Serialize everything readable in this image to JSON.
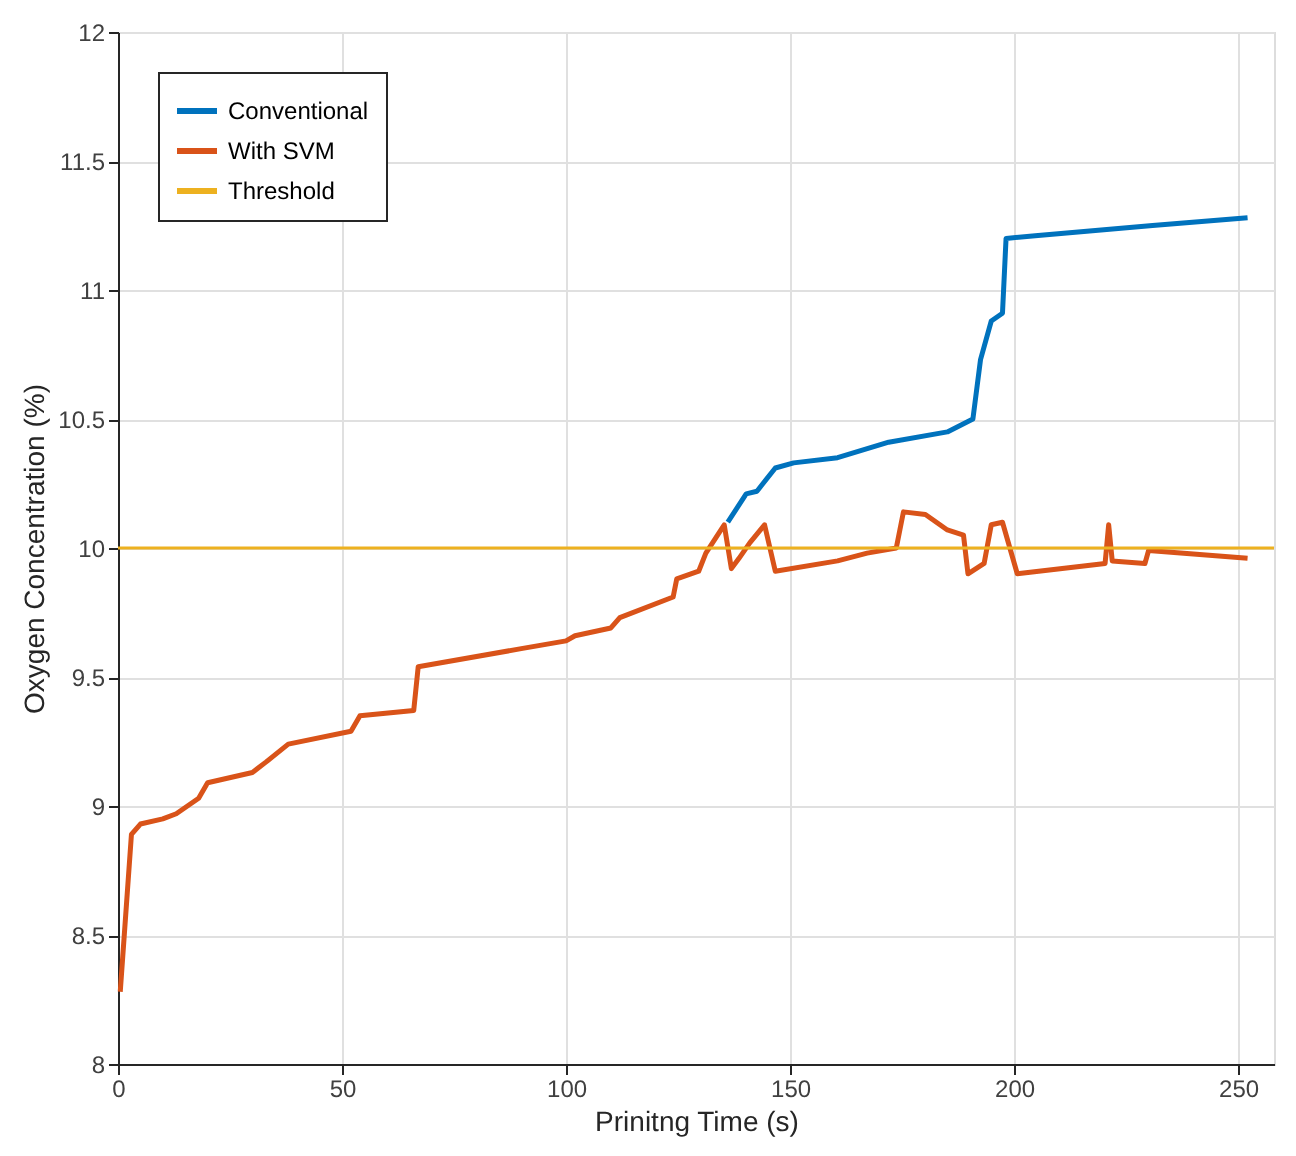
{
  "chart_data": {
    "type": "line",
    "xlabel": "Prinitng Time (s)",
    "ylabel": "Oxygen Concentration (%)",
    "xlim": [
      0,
      258
    ],
    "xticks": [
      0,
      50,
      100,
      150,
      200,
      250
    ],
    "ylim": [
      8,
      12
    ],
    "yticks": [
      8,
      8.5,
      9,
      9.5,
      10,
      10.5,
      11,
      11.5,
      12
    ],
    "grid": true,
    "legend": "top left",
    "line_style": "solid",
    "marker": "none",
    "series": [
      {
        "name": "Conventional",
        "color": "#0072bd",
        "x": [
          136.1,
          140.2,
          142.6,
          146.7,
          150.8,
          160.6,
          172,
          185.1,
          190.8,
          192.5,
          194.9,
          197.4,
          198.2,
          204.7,
          230.9,
          252.1
        ],
        "values": [
          10.1,
          10.21,
          10.22,
          10.31,
          10.33,
          10.35,
          10.41,
          10.45,
          10.5,
          10.73,
          10.88,
          10.91,
          11.2,
          11.21,
          11.25,
          11.28
        ]
      },
      {
        "name": "With SVM",
        "color": "#d95319",
        "x": [
          0.5,
          3,
          5,
          10,
          13,
          18,
          20,
          30,
          33,
          38,
          52,
          54,
          66,
          67,
          90,
          100,
          102,
          110,
          112,
          123.9,
          124.7,
          129.6,
          131.2,
          135.3,
          136.9,
          138.6,
          141,
          144.3,
          146.7,
          160.6,
          167.2,
          173.7,
          175.3,
          180.2,
          185.1,
          188.7,
          189.7,
          193.3,
          194.9,
          197.4,
          200.7,
          220.3,
          221.1,
          221.9,
          229.2,
          230,
          252.1
        ],
        "values": [
          8.28,
          8.89,
          8.93,
          8.95,
          8.97,
          9.03,
          9.09,
          9.13,
          9.17,
          9.24,
          9.29,
          9.35,
          9.37,
          9.54,
          9.61,
          9.64,
          9.66,
          9.69,
          9.73,
          9.81,
          9.88,
          9.91,
          9.98,
          10.09,
          9.92,
          9.96,
          10.02,
          10.09,
          9.91,
          9.95,
          9.98,
          10.0,
          10.14,
          10.13,
          10.07,
          10.05,
          9.9,
          9.94,
          10.09,
          10.1,
          9.9,
          9.94,
          10.09,
          9.95,
          9.94,
          9.99,
          9.96
        ]
      }
    ],
    "ref_lines": [
      {
        "axis": "y",
        "value": 10,
        "label": "Threshold",
        "color": "#edb120",
        "line_style": "solid"
      }
    ]
  }
}
